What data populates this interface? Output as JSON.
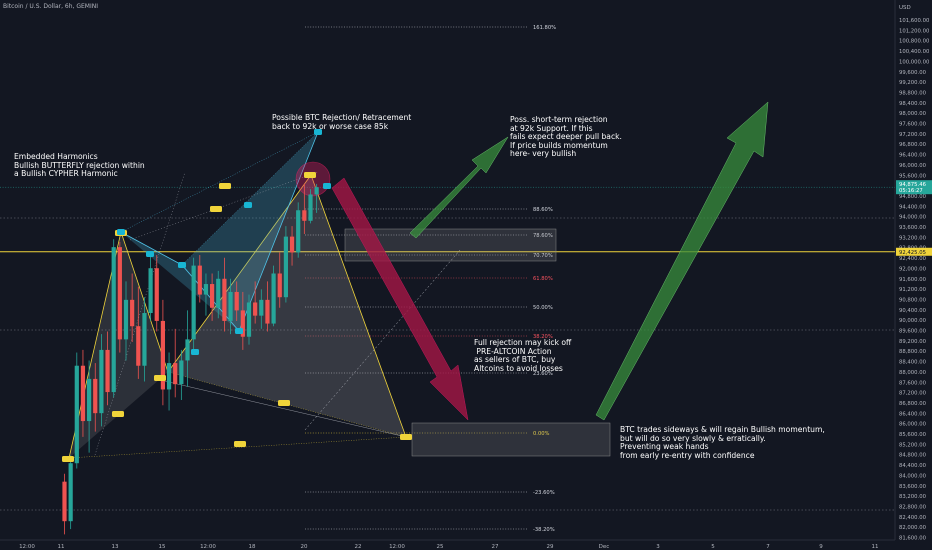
{
  "header": {
    "symbol_line": "Bitcoin / U.S. Dollar, 6h, GEMINI"
  },
  "y_axis": {
    "currency": "USD",
    "ticks": [
      "101,600.00",
      "101,200.00",
      "100,800.00",
      "100,400.00",
      "100,000.00",
      "99,600.00",
      "99,200.00",
      "98,800.00",
      "98,400.00",
      "98,000.00",
      "97,600.00",
      "97,200.00",
      "96,800.00",
      "96,400.00",
      "96,000.00",
      "95,600.00",
      "95,200.00",
      "94,800.00",
      "94,400.00",
      "94,000.00",
      "93,600.00",
      "93,200.00",
      "92,800.00",
      "92,400.00",
      "92,000.00",
      "91,600.00",
      "91,200.00",
      "90,800.00",
      "90,400.00",
      "90,000.00",
      "89,600.00",
      "89,200.00",
      "88,800.00",
      "88,400.00",
      "88,000.00",
      "87,600.00",
      "87,200.00",
      "86,800.00",
      "86,400.00",
      "86,000.00",
      "85,600.00",
      "85,200.00",
      "84,800.00",
      "84,400.00",
      "84,000.00",
      "83,600.00",
      "83,200.00",
      "82,800.00",
      "82,400.00",
      "82,000.00",
      "81,600.00"
    ],
    "price_label": "94,875.46",
    "countdown_label": "05:16:27",
    "level_label": "92,425.05",
    "accent_green": "#26a69a",
    "accent_yellow": "#f0d43a"
  },
  "x_axis": {
    "ticks": [
      "12:00",
      "11",
      "13",
      "15",
      "12:00",
      "18",
      "20",
      "22",
      "12:00",
      "25",
      "27",
      "29",
      "Dec",
      "3",
      "5",
      "7",
      "9",
      "11"
    ]
  },
  "fib_levels": [
    {
      "label": "161.80%",
      "color": "#d1d4dc"
    },
    {
      "label": "88.60%",
      "color": "#d1d4dc"
    },
    {
      "label": "78.60%",
      "color": "#d1d4dc"
    },
    {
      "label": "70.70%",
      "color": "#d1d4dc"
    },
    {
      "label": "61.80%",
      "color": "#f7525f"
    },
    {
      "label": "50.00%",
      "color": "#d1d4dc"
    },
    {
      "label": "38.20%",
      "color": "#f7525f"
    },
    {
      "label": "23.60%",
      "color": "#d1d4dc"
    },
    {
      "label": "0.00%",
      "color": "#f0d43a"
    },
    {
      "label": "-23.60%",
      "color": "#d1d4dc"
    },
    {
      "label": "-38.20%",
      "color": "#d1d4dc"
    }
  ],
  "annotations": {
    "embedded": "Embedded Harmonics\nBullish BUTTERFLY rejection within\na Bullish CYPHER Harmonic",
    "rejection": "Possible BTC Rejection/ Retracement\nback to 92k or worse case 85k",
    "short_term": "Poss. short-term rejection\nat 92k Support. If this\nfails expect deeper pull back.\nIf price builds momentum\nhere- very bullish",
    "full_rejection": "Full rejection may kick off\n PRE-ALTCOIN Action\nas sellers of BTC, buy\nAltcoins to avoid losses",
    "sideways": "BTC trades sideways & will regain Bullish momentum,\nbut will do so very slowly & erratically.\nPreventing weak hands\nfrom early re-entry with confidence"
  },
  "chart_data": {
    "type": "candlestick",
    "title": "Bitcoin / U.S. Dollar, 6h, GEMINI",
    "ylim": [
      81600,
      101800
    ],
    "current_price": 94875.46,
    "horizontal_level": 92425.05,
    "candles": [
      [
        83700,
        84000,
        81700,
        82200
      ],
      [
        82200,
        84700,
        81900,
        84400
      ],
      [
        84400,
        88600,
        84200,
        88100
      ],
      [
        88100,
        88700,
        85400,
        86000
      ],
      [
        86000,
        88300,
        84800,
        87600
      ],
      [
        87600,
        88200,
        85600,
        86300
      ],
      [
        86300,
        89300,
        85800,
        88700
      ],
      [
        88700,
        89400,
        86600,
        87100
      ],
      [
        87100,
        92900,
        86900,
        92600
      ],
      [
        92600,
        92800,
        88600,
        89100
      ],
      [
        89100,
        91300,
        88300,
        90600
      ],
      [
        90600,
        91600,
        89000,
        89600
      ],
      [
        89600,
        91100,
        87600,
        88100
      ],
      [
        88100,
        90700,
        87500,
        90100
      ],
      [
        90100,
        92300,
        89800,
        91800
      ],
      [
        91800,
        92300,
        89400,
        89800
      ],
      [
        89800,
        90600,
        86600,
        87200
      ],
      [
        87200,
        88600,
        86400,
        88200
      ],
      [
        88200,
        89500,
        86900,
        87400
      ],
      [
        87400,
        88700,
        86800,
        88300
      ],
      [
        88300,
        90200,
        87300,
        89100
      ],
      [
        89100,
        92200,
        88600,
        91900
      ],
      [
        91900,
        92300,
        90500,
        90800
      ],
      [
        90800,
        91600,
        90000,
        91200
      ],
      [
        91200,
        91600,
        89800,
        90300
      ],
      [
        90300,
        91700,
        89900,
        91400
      ],
      [
        91400,
        92200,
        89400,
        89800
      ],
      [
        89800,
        91400,
        89300,
        90900
      ],
      [
        90900,
        91300,
        89800,
        90200
      ],
      [
        90200,
        90900,
        88700,
        89200
      ],
      [
        89200,
        90800,
        88900,
        90500
      ],
      [
        90500,
        91300,
        89700,
        90000
      ],
      [
        90000,
        91000,
        89500,
        90600
      ],
      [
        90600,
        91300,
        89400,
        89700
      ],
      [
        89700,
        91900,
        89600,
        91600
      ],
      [
        91600,
        92400,
        90300,
        90700
      ],
      [
        90700,
        93400,
        90500,
        93000
      ],
      [
        93000,
        93400,
        91900,
        92400
      ],
      [
        92400,
        94300,
        92200,
        94000
      ],
      [
        94000,
        95000,
        93100,
        93600
      ],
      [
        93600,
        94800,
        93500,
        94600
      ],
      [
        94600,
        95000,
        93900,
        94875
      ]
    ]
  }
}
